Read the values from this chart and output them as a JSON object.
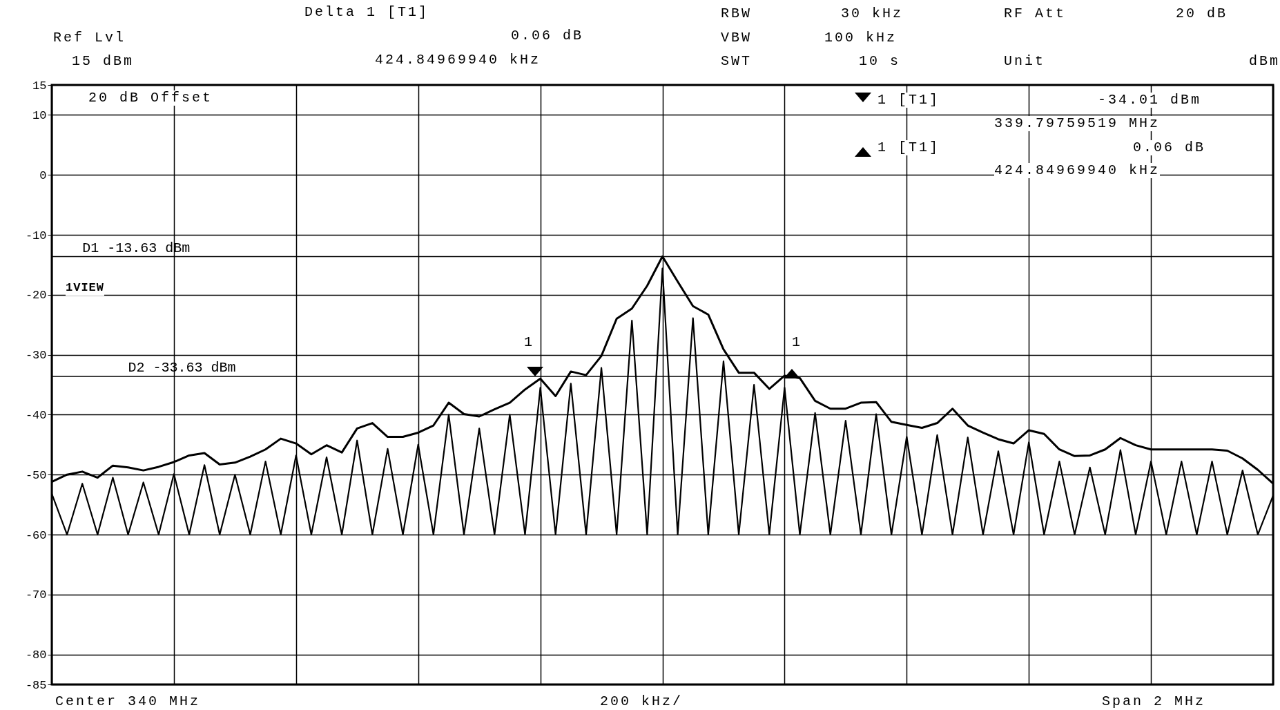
{
  "chart_data": {
    "type": "line",
    "categories": [
      null,
      null,
      null,
      null,
      null,
      null,
      null,
      null,
      null,
      null,
      null,
      null,
      null,
      null,
      null,
      null,
      null,
      null,
      null,
      null,
      null,
      null,
      null,
      null,
      null,
      null,
      null,
      null,
      null,
      null,
      null,
      null,
      null,
      null,
      null,
      null,
      null,
      null,
      null,
      null,
      null,
      null,
      null,
      null,
      null,
      null,
      null,
      null,
      null,
      null,
      null,
      null,
      null,
      null,
      null,
      null,
      null,
      null,
      null,
      null,
      null,
      null,
      null,
      null,
      null,
      null,
      null,
      null,
      null,
      null,
      null,
      null,
      null,
      null,
      null,
      null,
      null,
      null,
      null,
      null,
      null
    ],
    "series": [
      {
        "color": "#000000",
        "values": [
          -51.2,
          -50.0,
          -49.5,
          -50.5,
          -48.5,
          -48.8,
          -49.3,
          -48.7,
          -47.9,
          -46.8,
          -46.4,
          -48.3,
          -48.0,
          -47.0,
          -45.8,
          -44.0,
          -44.8,
          -46.6,
          -45.1,
          -46.3,
          -42.3,
          -41.4,
          -43.7,
          -43.7,
          -43.0,
          -41.8,
          -38.0,
          -39.9,
          -40.3,
          -39.1,
          -38.0,
          -35.8,
          -34.0,
          -36.9,
          -32.8,
          -33.4,
          -30.2,
          -24.0,
          -22.3,
          -18.5,
          -13.6,
          -17.8,
          -21.9,
          -23.3,
          -29.1,
          -33.0,
          -33.0,
          -35.7,
          -33.5,
          -33.9,
          -37.7,
          -39.0,
          -39.0,
          -38.0,
          -37.9,
          -41.2,
          -41.7,
          -42.2,
          -41.4,
          -39.0,
          -41.8,
          -43.0,
          -44.1,
          -44.8,
          -42.6,
          -43.2,
          -45.8,
          -46.9,
          -46.8,
          -45.8,
          -43.9,
          -45.1,
          -45.8,
          -45.8,
          -45.8,
          -45.8,
          -45.8,
          -46.0,
          -47.3,
          -49.2,
          -51.5
        ]
      },
      {
        "color": "#000000",
        "values": [
          -53.2,
          -60,
          -51.5,
          -60,
          -50.5,
          -60,
          -51.3,
          -60,
          -49.9,
          -60,
          -48.4,
          -60,
          -50.0,
          -60,
          -47.8,
          -60,
          -46.8,
          -60,
          -47.1,
          -60,
          -44.3,
          -60,
          -45.7,
          -60,
          -45.0,
          -60,
          -40.0,
          -60,
          -42.3,
          -60,
          -40.0,
          -60,
          -35.5,
          -60,
          -34.8,
          -60,
          -32.2,
          -60,
          -24.3,
          -60,
          -15.6,
          -60,
          -23.9,
          -60,
          -31.1,
          -60,
          -35.0,
          -60,
          -35.5,
          -60,
          -39.7,
          -60,
          -41.0,
          -60,
          -39.9,
          -60,
          -43.7,
          -60,
          -43.4,
          -60,
          -43.8,
          -60,
          -46.1,
          -60,
          -44.6,
          -60,
          -47.8,
          -60,
          -48.8,
          -60,
          -45.9,
          -60,
          -47.8,
          -60,
          -47.8,
          -60,
          -47.8,
          -60,
          -49.3,
          -60,
          -53.5
        ]
      }
    ],
    "ylim": [
      -85,
      15
    ],
    "yticks": [
      15,
      10,
      0,
      -10,
      -20,
      -30,
      -40,
      -50,
      -60,
      -70,
      -80,
      -85
    ],
    "grid": true,
    "tick_labels": "y",
    "ref_lines": [
      {
        "axis": "y",
        "value": -13.63,
        "label": "D1 -13.63 dBm"
      },
      {
        "axis": "y",
        "value": -33.63,
        "label": "D2 -33.63 dBm"
      }
    ],
    "annotations": [
      "Delta 1 [T1]",
      "Ref Lvl",
      "15 dBm",
      "0.06 dB",
      "424.84969940 kHz",
      "RBW",
      "30 kHz",
      "VBW",
      "100 kHz",
      "SWT",
      "10 s",
      "RF Att",
      "20 dB",
      "Unit",
      "dBm",
      "20 dB Offset",
      "1VIEW",
      "1 [T1]",
      "-34.01 dBm",
      "339.79759519 MHz",
      "1 [T1]",
      "0.06 dB",
      "424.84969940 kHz",
      "Center 340 MHz",
      "200 kHz/",
      "Span 2 MHz",
      "1",
      "1"
    ]
  }
}
